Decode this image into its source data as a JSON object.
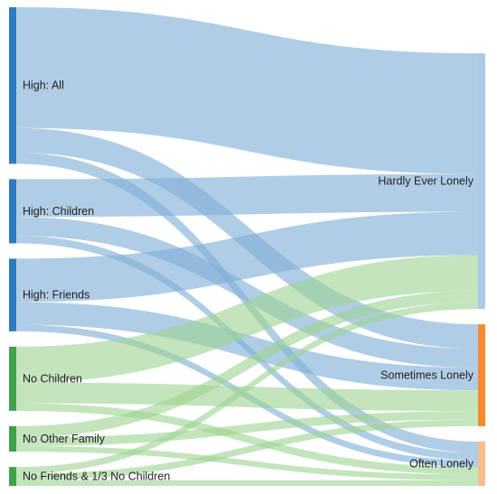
{
  "chart_data": {
    "type": "sankey",
    "title": "",
    "sources": [
      {
        "label": "High: All",
        "color": "#2E7BBF"
      },
      {
        "label": "High: Children",
        "color": "#2E7BBF"
      },
      {
        "label": "High: Friends",
        "color": "#2E7BBF"
      },
      {
        "label": "No Children",
        "color": "#3FA34D"
      },
      {
        "label": "No Other Family",
        "color": "#3FA34D"
      },
      {
        "label": "No Friends & 1/3 No Children",
        "color": "#3FA34D"
      }
    ],
    "targets": [
      {
        "label": "Hardly Ever Lonely",
        "color": "#AFC8E8"
      },
      {
        "label": "Sometimes Lonely",
        "color": "#F58A2E"
      },
      {
        "label": "Often Lonely",
        "color": "#F7BE8C"
      }
    ],
    "link_colors": {
      "high": "#7FAFD6",
      "no": "#9ED493"
    },
    "flows": [
      {
        "source": "High: All",
        "target": "Hardly Ever Lonely",
        "value": 128
      },
      {
        "source": "High: All",
        "target": "Sometimes Lonely",
        "value": 26
      },
      {
        "source": "High: All",
        "target": "Often Lonely",
        "value": 12
      },
      {
        "source": "High: Children",
        "target": "Hardly Ever Lonely",
        "value": 40
      },
      {
        "source": "High: Children",
        "target": "Sometimes Lonely",
        "value": 20
      },
      {
        "source": "High: Children",
        "target": "Often Lonely",
        "value": 8
      },
      {
        "source": "High: Friends",
        "target": "Hardly Ever Lonely",
        "value": 46
      },
      {
        "source": "High: Friends",
        "target": "Sometimes Lonely",
        "value": 24
      },
      {
        "source": "High: Friends",
        "target": "Often Lonely",
        "value": 7
      },
      {
        "source": "No Children",
        "target": "Hardly Ever Lonely",
        "value": 38
      },
      {
        "source": "No Children",
        "target": "Sometimes Lonely",
        "value": 22
      },
      {
        "source": "No Children",
        "target": "Often Lonely",
        "value": 8
      },
      {
        "source": "No Other Family",
        "target": "Hardly Ever Lonely",
        "value": 12
      },
      {
        "source": "No Other Family",
        "target": "Sometimes Lonely",
        "value": 9
      },
      {
        "source": "No Other Family",
        "target": "Often Lonely",
        "value": 6
      },
      {
        "source": "No Friends & 1/3 No Children",
        "target": "Hardly Ever Lonely",
        "value": 7
      },
      {
        "source": "No Friends & 1/3 No Children",
        "target": "Sometimes Lonely",
        "value": 7
      },
      {
        "source": "No Friends & 1/3 No Children",
        "target": "Often Lonely",
        "value": 6
      }
    ]
  }
}
